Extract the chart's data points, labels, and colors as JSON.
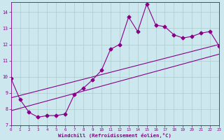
{
  "xlabel": "Windchill (Refroidissement éolien,°C)",
  "background_color": "#cce8ee",
  "grid_color": "#aacccc",
  "line_color": "#880088",
  "x_main": [
    0,
    1,
    2,
    3,
    4,
    5,
    6,
    7,
    8,
    9,
    10,
    11,
    12,
    13,
    14,
    15,
    16,
    17,
    18,
    19,
    20,
    21,
    22,
    23
  ],
  "y_main": [
    9.9,
    8.6,
    7.8,
    7.5,
    7.6,
    7.6,
    7.7,
    8.9,
    9.3,
    9.8,
    10.4,
    11.7,
    12.0,
    13.7,
    12.8,
    14.5,
    13.2,
    13.1,
    12.6,
    12.4,
    12.5,
    12.7,
    12.8,
    11.9
  ],
  "line1_x": [
    0,
    23
  ],
  "line1_y": [
    7.9,
    11.4
  ],
  "line2_x": [
    0,
    23
  ],
  "line2_y": [
    8.7,
    12.0
  ],
  "xlim": [
    0,
    23
  ],
  "ylim": [
    7.0,
    14.6
  ],
  "yticks": [
    7,
    8,
    9,
    10,
    11,
    12,
    13,
    14
  ],
  "xticks": [
    0,
    1,
    2,
    3,
    4,
    5,
    6,
    7,
    8,
    9,
    10,
    11,
    12,
    13,
    14,
    15,
    16,
    17,
    18,
    19,
    20,
    21,
    22,
    23
  ],
  "marker": "D",
  "marker_size": 2.5,
  "line_width": 0.8,
  "font_family": "monospace"
}
